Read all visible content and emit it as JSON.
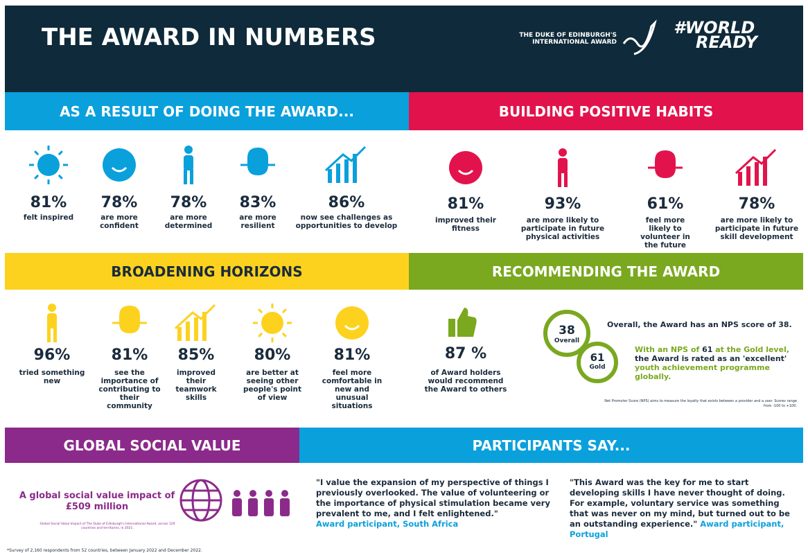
{
  "header": {
    "title": "THE AWARD IN NUMBERS",
    "logo_text": [
      "THE DUKE OF EDINBURGH'S",
      "INTERNATIONAL AWARD"
    ],
    "hashtag": [
      "#WORLD",
      "READY"
    ]
  },
  "result": {
    "title": "AS A RESULT OF DOING THE AWARD...",
    "stats": [
      {
        "value": "81%",
        "label": "felt inspired"
      },
      {
        "value": "78%",
        "label": "are more confident"
      },
      {
        "value": "78%",
        "label": "are more determined"
      },
      {
        "value": "83%",
        "label": "are more resilient"
      },
      {
        "value": "86%",
        "label": "now see challenges as opportunities to develop"
      }
    ]
  },
  "habits": {
    "title": "BUILDING POSITIVE HABITS",
    "stats": [
      {
        "value": "81%",
        "label": "improved their fitness"
      },
      {
        "value": "93%",
        "label": "are more likely to participate in future physical activities"
      },
      {
        "value": "61%",
        "label": "feel more likely to volunteer in the future"
      },
      {
        "value": "78%",
        "label": "are more likely to participate in future skill development"
      }
    ]
  },
  "horizons": {
    "title": "BROADENING HORIZONS",
    "stats": [
      {
        "value": "96%",
        "label": "tried something new"
      },
      {
        "value": "81%",
        "label": "see the importance of contributing to their community"
      },
      {
        "value": "85%",
        "label": "improved their teamwork skills"
      },
      {
        "value": "80%",
        "label": "are better at seeing other people's point of view"
      },
      {
        "value": "81%",
        "label": "feel more comfortable in new and unusual situations"
      }
    ]
  },
  "recommending": {
    "title": "RECOMMENDING THE AWARD",
    "stat": {
      "value": "87 %",
      "label": "of Award holders would recommend the Award to others"
    },
    "overall": {
      "score": "38",
      "label": "Overall"
    },
    "gold": {
      "score": "61",
      "label": "Gold"
    },
    "statement": "Overall, the Award has an NPS score of 38.",
    "gold_statement": [
      {
        "text": "With an NPS of ",
        "color": "green"
      },
      {
        "text": "61",
        "color": "dark"
      },
      {
        "text": " at the Gold level, ",
        "color": "green"
      },
      {
        "text": "the Award is rated as an 'excellent' ",
        "color": "dark"
      },
      {
        "text": "youth achievement programme globally.",
        "color": "green"
      }
    ],
    "note": "Net Promoter Score (NPS) aims to measure the loyalty that exists between a provider and a user. Scores range from -100 to +100."
  },
  "global": {
    "title": "GLOBAL SOCIAL VALUE",
    "lead": "A global social value impact of",
    "amount": "£509 million",
    "note": "Global Social Value Impact of The Duke of Edinburgh's International Award, across 129 countries and territories, in 2021."
  },
  "participants": {
    "title": "PARTICIPANTS SAY...",
    "quotes": [
      {
        "text": "\"I value the expansion of my perspective of things I previously overlooked. The value of volunteering or the importance of physical stimulation became very prevalent to me, and I felt enlightened.\"",
        "attribution": "Award participant, South Africa"
      },
      {
        "text": "\"This Award was the key for me to start developing skills I have never thought of doing. For example, voluntary service was something that was never on my mind, but turned out to be an outstanding experience.\"",
        "attribution": "Award participant, Portugal"
      }
    ]
  },
  "footnote": "*Survey of 2,160 respondents from 52 countries, between January 2022 and December 2022."
}
